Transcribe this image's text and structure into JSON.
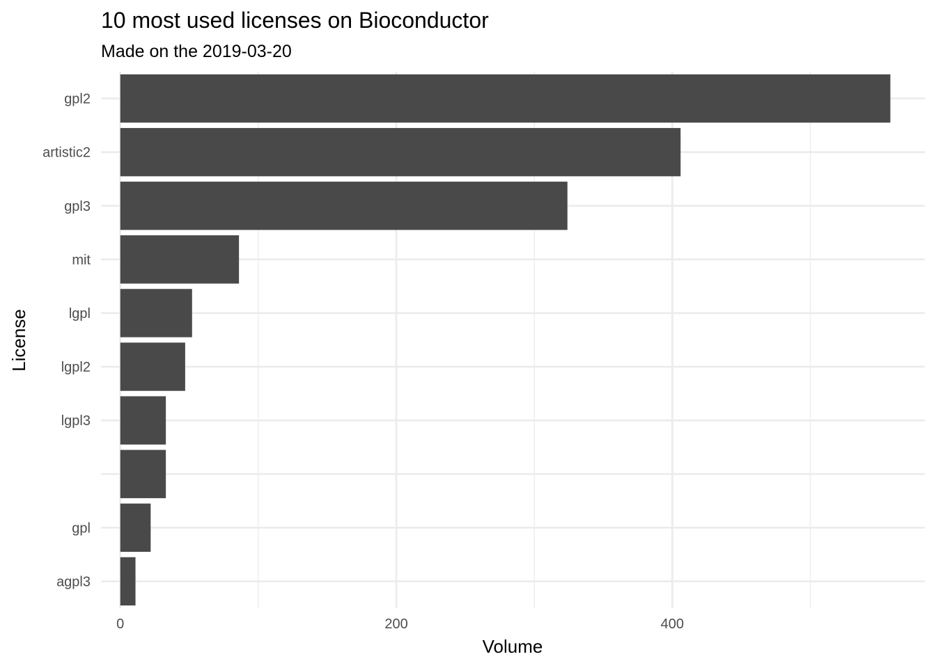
{
  "chart_data": {
    "type": "bar",
    "orientation": "horizontal",
    "title": "10 most used licenses on Bioconductor",
    "subtitle": "Made on the 2019-03-20",
    "xlabel": "Volume",
    "ylabel": "License",
    "categories": [
      "gpl2",
      "artistic2",
      "gpl3",
      "mit",
      "lgpl",
      "lgpl2",
      "lgpl3",
      "",
      "gpl",
      "agpl3"
    ],
    "values": [
      558,
      406,
      324,
      86,
      52,
      47,
      33,
      33,
      22,
      11
    ],
    "xlim": [
      -14,
      583
    ],
    "x_ticks": [
      0,
      200,
      400
    ],
    "x_tick_labels": [
      "0",
      "200",
      "400"
    ],
    "grid": true,
    "bar_color": "#494949",
    "grid_color": "#ebebeb",
    "legend": "none"
  }
}
